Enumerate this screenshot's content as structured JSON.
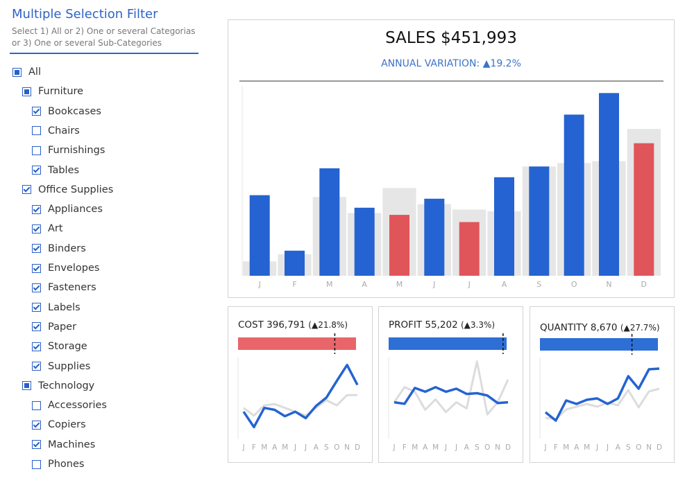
{
  "filter": {
    "title": "Multiple Selection Filter",
    "description_line1": "Select 1)  All or 2) One or several Categorias",
    "description_line2": "or 3) One or several Sub-Categories",
    "items": [
      {
        "label": "All",
        "level": 0,
        "state": "partial"
      },
      {
        "label": "Furniture",
        "level": 1,
        "state": "partial"
      },
      {
        "label": "Bookcases",
        "level": 2,
        "state": "checked"
      },
      {
        "label": "Chairs",
        "level": 2,
        "state": "unchecked"
      },
      {
        "label": "Furnishings",
        "level": 2,
        "state": "unchecked"
      },
      {
        "label": "Tables",
        "level": 2,
        "state": "checked"
      },
      {
        "label": "Office Supplies",
        "level": 1,
        "state": "checked"
      },
      {
        "label": "Appliances",
        "level": 2,
        "state": "checked"
      },
      {
        "label": "Art",
        "level": 2,
        "state": "checked"
      },
      {
        "label": "Binders",
        "level": 2,
        "state": "checked"
      },
      {
        "label": "Envelopes",
        "level": 2,
        "state": "checked"
      },
      {
        "label": "Fasteners",
        "level": 2,
        "state": "checked"
      },
      {
        "label": "Labels",
        "level": 2,
        "state": "checked"
      },
      {
        "label": "Paper",
        "level": 2,
        "state": "checked"
      },
      {
        "label": "Storage",
        "level": 2,
        "state": "checked"
      },
      {
        "label": "Supplies",
        "level": 2,
        "state": "checked"
      },
      {
        "label": "Technology",
        "level": 1,
        "state": "partial"
      },
      {
        "label": "Accessories",
        "level": 2,
        "state": "unchecked"
      },
      {
        "label": "Copiers",
        "level": 2,
        "state": "checked"
      },
      {
        "label": "Machines",
        "level": 2,
        "state": "checked"
      },
      {
        "label": "Phones",
        "level": 2,
        "state": "unchecked"
      }
    ]
  },
  "colors": {
    "increase": "#2463d1",
    "decrease": "#e0555a",
    "previous_year": "#e6e6e6",
    "accent_text": "#3a73c9",
    "cost_bar": "#e8666a",
    "profit_bar": "#2e6fd6",
    "quantity_bar": "#2e6fd6",
    "current_line": "#2463d1",
    "previous_line": "#dcdcdc"
  },
  "sales": {
    "title": "SALES $451,993",
    "variation_label": "ANNUAL VARIATION:",
    "variation_value": "▲19.2%"
  },
  "chart_data": [
    {
      "type": "bar",
      "name": "monthly-sales",
      "categories": [
        "J",
        "F",
        "M",
        "A",
        "M",
        "J",
        "J",
        "A",
        "S",
        "O",
        "N",
        "D"
      ],
      "series": [
        {
          "values": [
            8,
            12,
            44,
            35,
            49,
            40,
            37,
            36,
            61,
            63,
            64,
            82
          ]
        },
        {
          "values": [
            45,
            14,
            60,
            38,
            34,
            43,
            30,
            55,
            61,
            90,
            102,
            74
          ]
        }
      ],
      "ylim": [
        0,
        106
      ]
    },
    {
      "type": "line",
      "name": "cost-trend",
      "categories": [
        "J",
        "F",
        "M",
        "A",
        "M",
        "J",
        "J",
        "A",
        "S",
        "O",
        "N",
        "D"
      ],
      "series": [
        {
          "values": [
            48,
            36,
            52,
            54,
            48,
            42,
            36,
            48,
            60,
            52,
            68,
            68
          ]
        },
        {
          "values": [
            42,
            18,
            48,
            45,
            35,
            42,
            32,
            51,
            64,
            90,
            115,
            84
          ]
        }
      ],
      "ylim": [
        0,
        130
      ]
    },
    {
      "type": "line",
      "name": "profit-trend",
      "categories": [
        "J",
        "F",
        "M",
        "A",
        "M",
        "J",
        "J",
        "A",
        "S",
        "O",
        "N",
        "D"
      ],
      "series": [
        {
          "values": [
            48,
            68,
            62,
            38,
            52,
            35,
            48,
            40,
            102,
            32,
            48,
            78
          ]
        },
        {
          "values": [
            48,
            46,
            67,
            62,
            68,
            62,
            66,
            59,
            60,
            57,
            47,
            48
          ]
        }
      ],
      "ylim": [
        0,
        110
      ]
    },
    {
      "type": "line",
      "name": "quantity-trend",
      "categories": [
        "J",
        "F",
        "M",
        "A",
        "M",
        "J",
        "J",
        "A",
        "S",
        "O",
        "N",
        "D"
      ],
      "series": [
        {
          "values": [
            30,
            28,
            42,
            46,
            50,
            46,
            52,
            48,
            70,
            45,
            68,
            72
          ]
        },
        {
          "values": [
            38,
            26,
            55,
            50,
            56,
            58,
            50,
            58,
            90,
            72,
            100,
            101
          ]
        }
      ],
      "ylim": [
        0,
        120
      ]
    }
  ],
  "kpis": [
    {
      "key": "cost",
      "label": "COST 396,791",
      "variation": "(▲21.8%)",
      "bar_color": "#e8666a",
      "target_fraction": 0.82
    },
    {
      "key": "profit",
      "label": "PROFIT 55,202",
      "variation": "(▲3.3%)",
      "bar_color": "#2e6fd6",
      "target_fraction": 0.97
    },
    {
      "key": "quantity",
      "label": "QUANTITY 8,670",
      "variation": "(▲27.7%)",
      "bar_color": "#2e6fd6",
      "target_fraction": 0.78
    }
  ]
}
